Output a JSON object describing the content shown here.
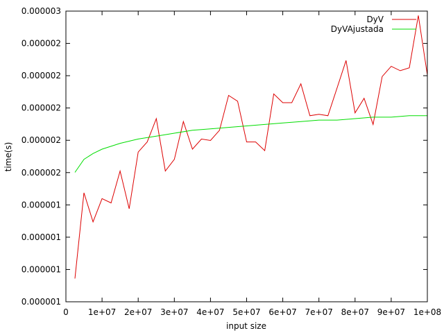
{
  "chart_data": {
    "type": "line",
    "title": "",
    "xlabel": "input size",
    "ylabel": "time(s)",
    "xlim": [
      0,
      100000000
    ],
    "ylim": [
      1e-06,
      3e-06
    ],
    "x_ticks": [
      {
        "value": 0,
        "label": "0"
      },
      {
        "value": 10000000,
        "label": "1e+07"
      },
      {
        "value": 20000000,
        "label": "2e+07"
      },
      {
        "value": 30000000,
        "label": "3e+07"
      },
      {
        "value": 40000000,
        "label": "4e+07"
      },
      {
        "value": 50000000,
        "label": "5e+07"
      },
      {
        "value": 60000000,
        "label": "6e+07"
      },
      {
        "value": 70000000,
        "label": "7e+07"
      },
      {
        "value": 80000000,
        "label": "8e+07"
      },
      {
        "value": 90000000,
        "label": "9e+07"
      },
      {
        "value": 100000000,
        "label": "1e+08"
      }
    ],
    "y_ticks": [
      {
        "value": 1e-06,
        "label": "0.000001"
      },
      {
        "value": 1.2222e-06,
        "label": "0.000001"
      },
      {
        "value": 1.4444e-06,
        "label": "0.000001"
      },
      {
        "value": 1.6667e-06,
        "label": "0.000001"
      },
      {
        "value": 1.8889e-06,
        "label": "0.000002"
      },
      {
        "value": 2.1111e-06,
        "label": "0.000002"
      },
      {
        "value": 2.3333e-06,
        "label": "0.000002"
      },
      {
        "value": 2.5556e-06,
        "label": "0.000002"
      },
      {
        "value": 2.7778e-06,
        "label": "0.000002"
      },
      {
        "value": 3e-06,
        "label": "0.000003"
      }
    ],
    "grid": false,
    "legend_position": "top-right",
    "series": [
      {
        "name": "DyV",
        "color": "#dd0000",
        "x": [
          2500000,
          5000000,
          7500000,
          10000000,
          12500000,
          15000000,
          17500000,
          20000000,
          22500000,
          25000000,
          27500000,
          30000000,
          32500000,
          35000000,
          37500000,
          40000000,
          42500000,
          45000000,
          47500000,
          50000000,
          52500000,
          55000000,
          57500000,
          60000000,
          62500000,
          65000000,
          67500000,
          70000000,
          72500000,
          75000000,
          77500000,
          80000000,
          82500000,
          85000000,
          87500000,
          90000000,
          92500000,
          95000000,
          97500000,
          100000000
        ],
        "y": [
          1.16e-06,
          1.75e-06,
          1.55e-06,
          1.71e-06,
          1.68e-06,
          1.9e-06,
          1.64e-06,
          2.03e-06,
          2.1e-06,
          2.26e-06,
          1.9e-06,
          1.98e-06,
          2.24e-06,
          2.05e-06,
          2.12e-06,
          2.11e-06,
          2.18e-06,
          2.42e-06,
          2.38e-06,
          2.1e-06,
          2.1e-06,
          2.04e-06,
          2.43e-06,
          2.37e-06,
          2.37e-06,
          2.5e-06,
          2.28e-06,
          2.29e-06,
          2.28e-06,
          2.47e-06,
          2.66e-06,
          2.3e-06,
          2.4e-06,
          2.22e-06,
          2.55e-06,
          2.62e-06,
          2.59e-06,
          2.61e-06,
          2.97e-06,
          2.56e-06
        ]
      },
      {
        "name": "DyVAjustada",
        "color": "#00dd00",
        "x": [
          2500000,
          5000000,
          7500000,
          10000000,
          15000000,
          20000000,
          25000000,
          30000000,
          35000000,
          40000000,
          45000000,
          50000000,
          55000000,
          60000000,
          65000000,
          70000000,
          75000000,
          80000000,
          85000000,
          90000000,
          95000000,
          100000000
        ],
        "y": [
          1.89e-06,
          1.98e-06,
          2.02e-06,
          2.05e-06,
          2.09e-06,
          2.12e-06,
          2.14e-06,
          2.16e-06,
          2.18e-06,
          2.19e-06,
          2.2e-06,
          2.21e-06,
          2.22e-06,
          2.23e-06,
          2.24e-06,
          2.25e-06,
          2.25e-06,
          2.26e-06,
          2.27e-06,
          2.27e-06,
          2.28e-06,
          2.28e-06
        ]
      }
    ]
  }
}
